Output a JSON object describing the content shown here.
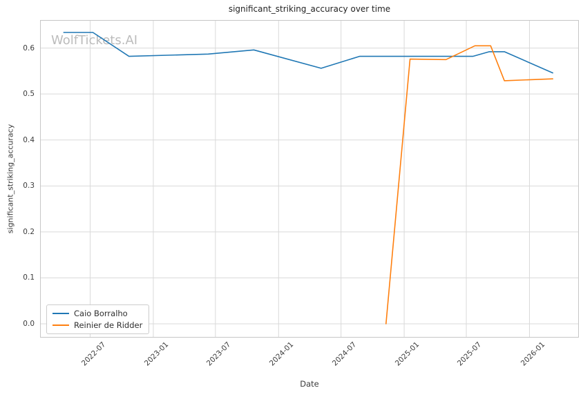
{
  "title": "significant_striking_accuracy over time",
  "watermark": "WolfTickets.AI",
  "axes": {
    "xlabel": "Date",
    "ylabel": "significant_striking_accuracy",
    "x_ticks": [
      {
        "label": "2022-07",
        "date": "2022-07-01"
      },
      {
        "label": "2023-01",
        "date": "2023-01-01"
      },
      {
        "label": "2023-07",
        "date": "2023-07-01"
      },
      {
        "label": "2024-01",
        "date": "2024-01-01"
      },
      {
        "label": "2024-07",
        "date": "2024-07-01"
      },
      {
        "label": "2025-01",
        "date": "2025-01-01"
      },
      {
        "label": "2025-07",
        "date": "2025-07-01"
      },
      {
        "label": "2026-01",
        "date": "2026-01-01"
      }
    ],
    "y_ticks": [
      {
        "label": "0.0",
        "value": 0.0
      },
      {
        "label": "0.1",
        "value": 0.1
      },
      {
        "label": "0.2",
        "value": 0.2
      },
      {
        "label": "0.3",
        "value": 0.3
      },
      {
        "label": "0.4",
        "value": 0.4
      },
      {
        "label": "0.5",
        "value": 0.5
      },
      {
        "label": "0.6",
        "value": 0.6
      }
    ]
  },
  "colors": {
    "series_blue": "#1f77b4",
    "series_orange": "#ff7f0e",
    "grid": "#d9d9d9",
    "plot_border": "#c6c6c6",
    "watermark": "#bcbcbc"
  },
  "chart_data": {
    "type": "line",
    "title": "significant_striking_accuracy over time",
    "xlabel": "Date",
    "ylabel": "significant_striking_accuracy",
    "grid": true,
    "legend_position": "lower left",
    "xlim": [
      "2022-02-05",
      "2026-05-25"
    ],
    "ylim": [
      -0.03,
      0.661
    ],
    "x_tick_labels": [
      "2022-07",
      "2023-01",
      "2023-07",
      "2024-01",
      "2024-07",
      "2025-01",
      "2025-07",
      "2026-01"
    ],
    "y_tick_labels": [
      "0.0",
      "0.1",
      "0.2",
      "0.3",
      "0.4",
      "0.5",
      "0.6"
    ],
    "series": [
      {
        "name": "Caio Borralho",
        "color": "#1f77b4",
        "points": [
          [
            "2022-04-15",
            0.634
          ],
          [
            "2022-07-09",
            0.634
          ],
          [
            "2022-10-22",
            0.582
          ],
          [
            "2023-06-10",
            0.587
          ],
          [
            "2023-10-21",
            0.596
          ],
          [
            "2024-05-04",
            0.556
          ],
          [
            "2024-08-24",
            0.582
          ],
          [
            "2025-02-01",
            0.582
          ],
          [
            "2025-07-20",
            0.582
          ],
          [
            "2025-09-06",
            0.592
          ],
          [
            "2025-10-20",
            0.592
          ],
          [
            "2026-03-10",
            0.546
          ]
        ]
      },
      {
        "name": "Reinier de Ridder",
        "color": "#ff7f0e",
        "points": [
          [
            "2024-11-09",
            0.0
          ],
          [
            "2025-01-18",
            0.576
          ],
          [
            "2025-05-03",
            0.575
          ],
          [
            "2025-07-26",
            0.605
          ],
          [
            "2025-09-10",
            0.605
          ],
          [
            "2025-10-20",
            0.529
          ],
          [
            "2026-03-10",
            0.533
          ]
        ]
      }
    ]
  }
}
